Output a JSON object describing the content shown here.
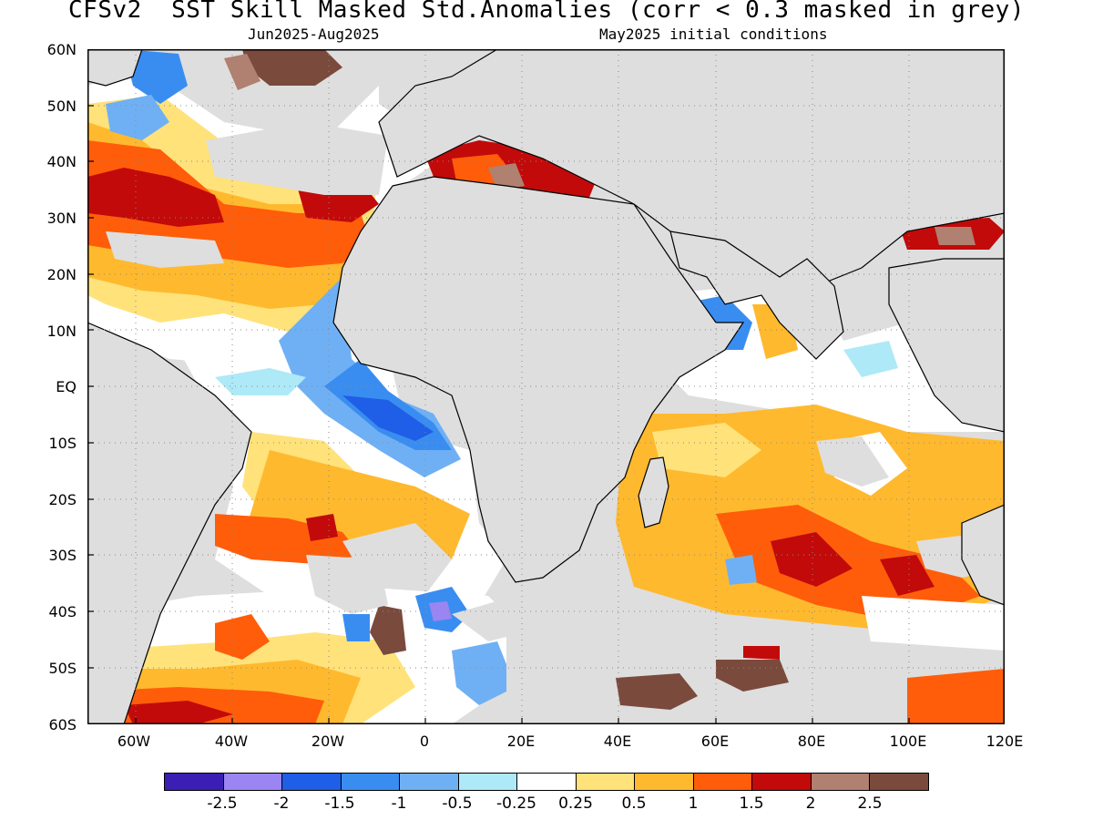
{
  "title": "CFSv2  SST Skill Masked Std.Anomalies (corr < 0.3 masked in grey)",
  "subtitle_left": "Jun2025-Aug2025",
  "subtitle_right": "May2025 initial conditions",
  "y_tick_labels": [
    "60N",
    "50N",
    "40N",
    "30N",
    "20N",
    "10N",
    "EQ",
    "10S",
    "20S",
    "30S",
    "40S",
    "50S",
    "60S"
  ],
  "x_tick_labels": [
    "60W",
    "40W",
    "20W",
    "0",
    "20E",
    "40E",
    "60E",
    "80E",
    "100E",
    "120E"
  ],
  "map": {
    "lon_range": [
      -70,
      120
    ],
    "lat_range": [
      -60,
      60
    ],
    "masked_color": "#dedede",
    "land_outline_color": "#000000"
  },
  "colorbar": {
    "colors": [
      "#3b1fb5",
      "#9b85f2",
      "#1f5ee6",
      "#3a8df0",
      "#6fb0f5",
      "#aee9f7",
      "#ffffff",
      "#ffe27a",
      "#ffb92e",
      "#ff5d0a",
      "#c20a0a",
      "#b08070",
      "#7a4a3c"
    ],
    "labels": [
      "-2.5",
      "-2",
      "-1.5",
      "-1",
      "-0.5",
      "-0.25",
      "0.25",
      "0.5",
      "1",
      "1.5",
      "2",
      "2.5"
    ]
  }
}
